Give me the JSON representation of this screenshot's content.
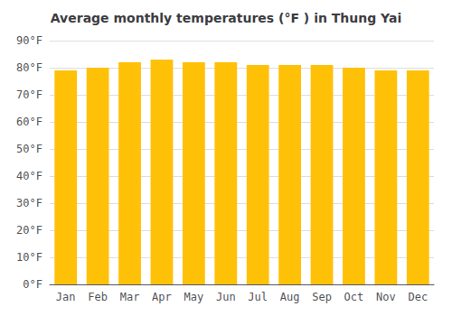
{
  "chart_data": {
    "type": "bar",
    "title": "Average monthly temperatures (°F ) in Thung Yai",
    "categories": [
      "Jan",
      "Feb",
      "Mar",
      "Apr",
      "May",
      "Jun",
      "Jul",
      "Aug",
      "Sep",
      "Oct",
      "Nov",
      "Dec"
    ],
    "values": [
      79,
      80,
      82,
      83,
      82,
      82,
      81,
      81,
      81,
      80,
      79,
      79
    ],
    "color": "#FFC107",
    "ylim": [
      0,
      90
    ],
    "yticks": [
      {
        "value": 0,
        "label": "0°F"
      },
      {
        "value": 10,
        "label": "10°F"
      },
      {
        "value": 20,
        "label": "20°F"
      },
      {
        "value": 30,
        "label": "30°F"
      },
      {
        "value": 40,
        "label": "40°F"
      },
      {
        "value": 50,
        "label": "50°F"
      },
      {
        "value": 60,
        "label": "60°F"
      },
      {
        "value": 70,
        "label": "70°F"
      },
      {
        "value": 80,
        "label": "80°F"
      },
      {
        "value": 90,
        "label": "90°F"
      }
    ],
    "grid": true
  }
}
